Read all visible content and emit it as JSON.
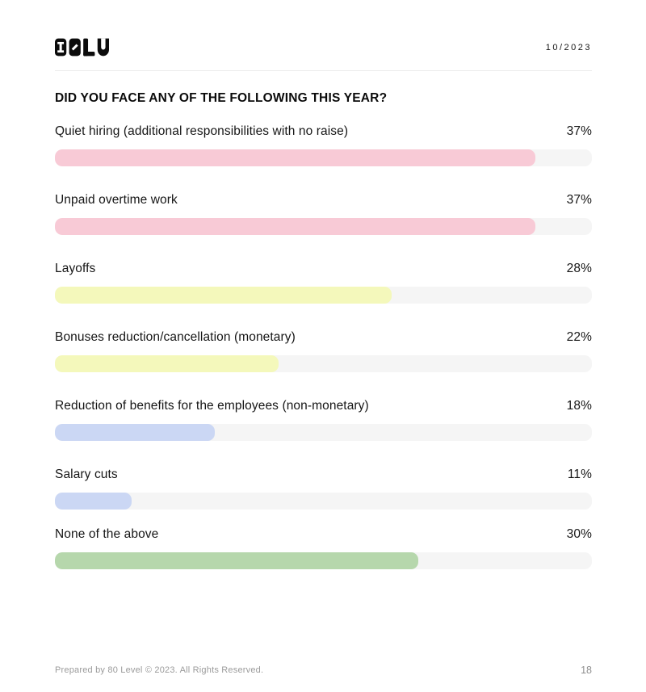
{
  "brand": {
    "logo_text": "80LV",
    "date": "10/2023"
  },
  "chart_data": {
    "type": "bar",
    "orientation": "horizontal",
    "title": "DID YOU FACE ANY OF THE FOLLOWING THIS YEAR?",
    "categories": [
      "Quiet hiring (additional responsibilities with no raise)",
      "Unpaid overtime work",
      "Layoffs",
      "Bonuses reduction/cancellation (monetary)",
      "Reduction of benefits for the employees (non-monetary)",
      "Salary cuts",
      "None of the above"
    ],
    "values": [
      37,
      37,
      28,
      22,
      18,
      11,
      30
    ],
    "value_labels": [
      "37%",
      "37%",
      "28%",
      "22%",
      "18%",
      "11%",
      "30%"
    ],
    "bar_colors": [
      "#F8CAD6",
      "#F8CAD6",
      "#F4F8BB",
      "#F4F8BB",
      "#CBD7F4",
      "#CBD7F4",
      "#B6D7AC"
    ],
    "bar_fill_pct": [
      89.5,
      89.5,
      62.7,
      41.7,
      29.8,
      14.3,
      67.7
    ],
    "track_color": "#F5F5F5",
    "xlim": [
      0,
      100
    ],
    "grid": false,
    "legend": false
  },
  "footer": {
    "text": "Prepared by 80 Level © 2023. All Rights Reserved.",
    "page_number": "18"
  }
}
